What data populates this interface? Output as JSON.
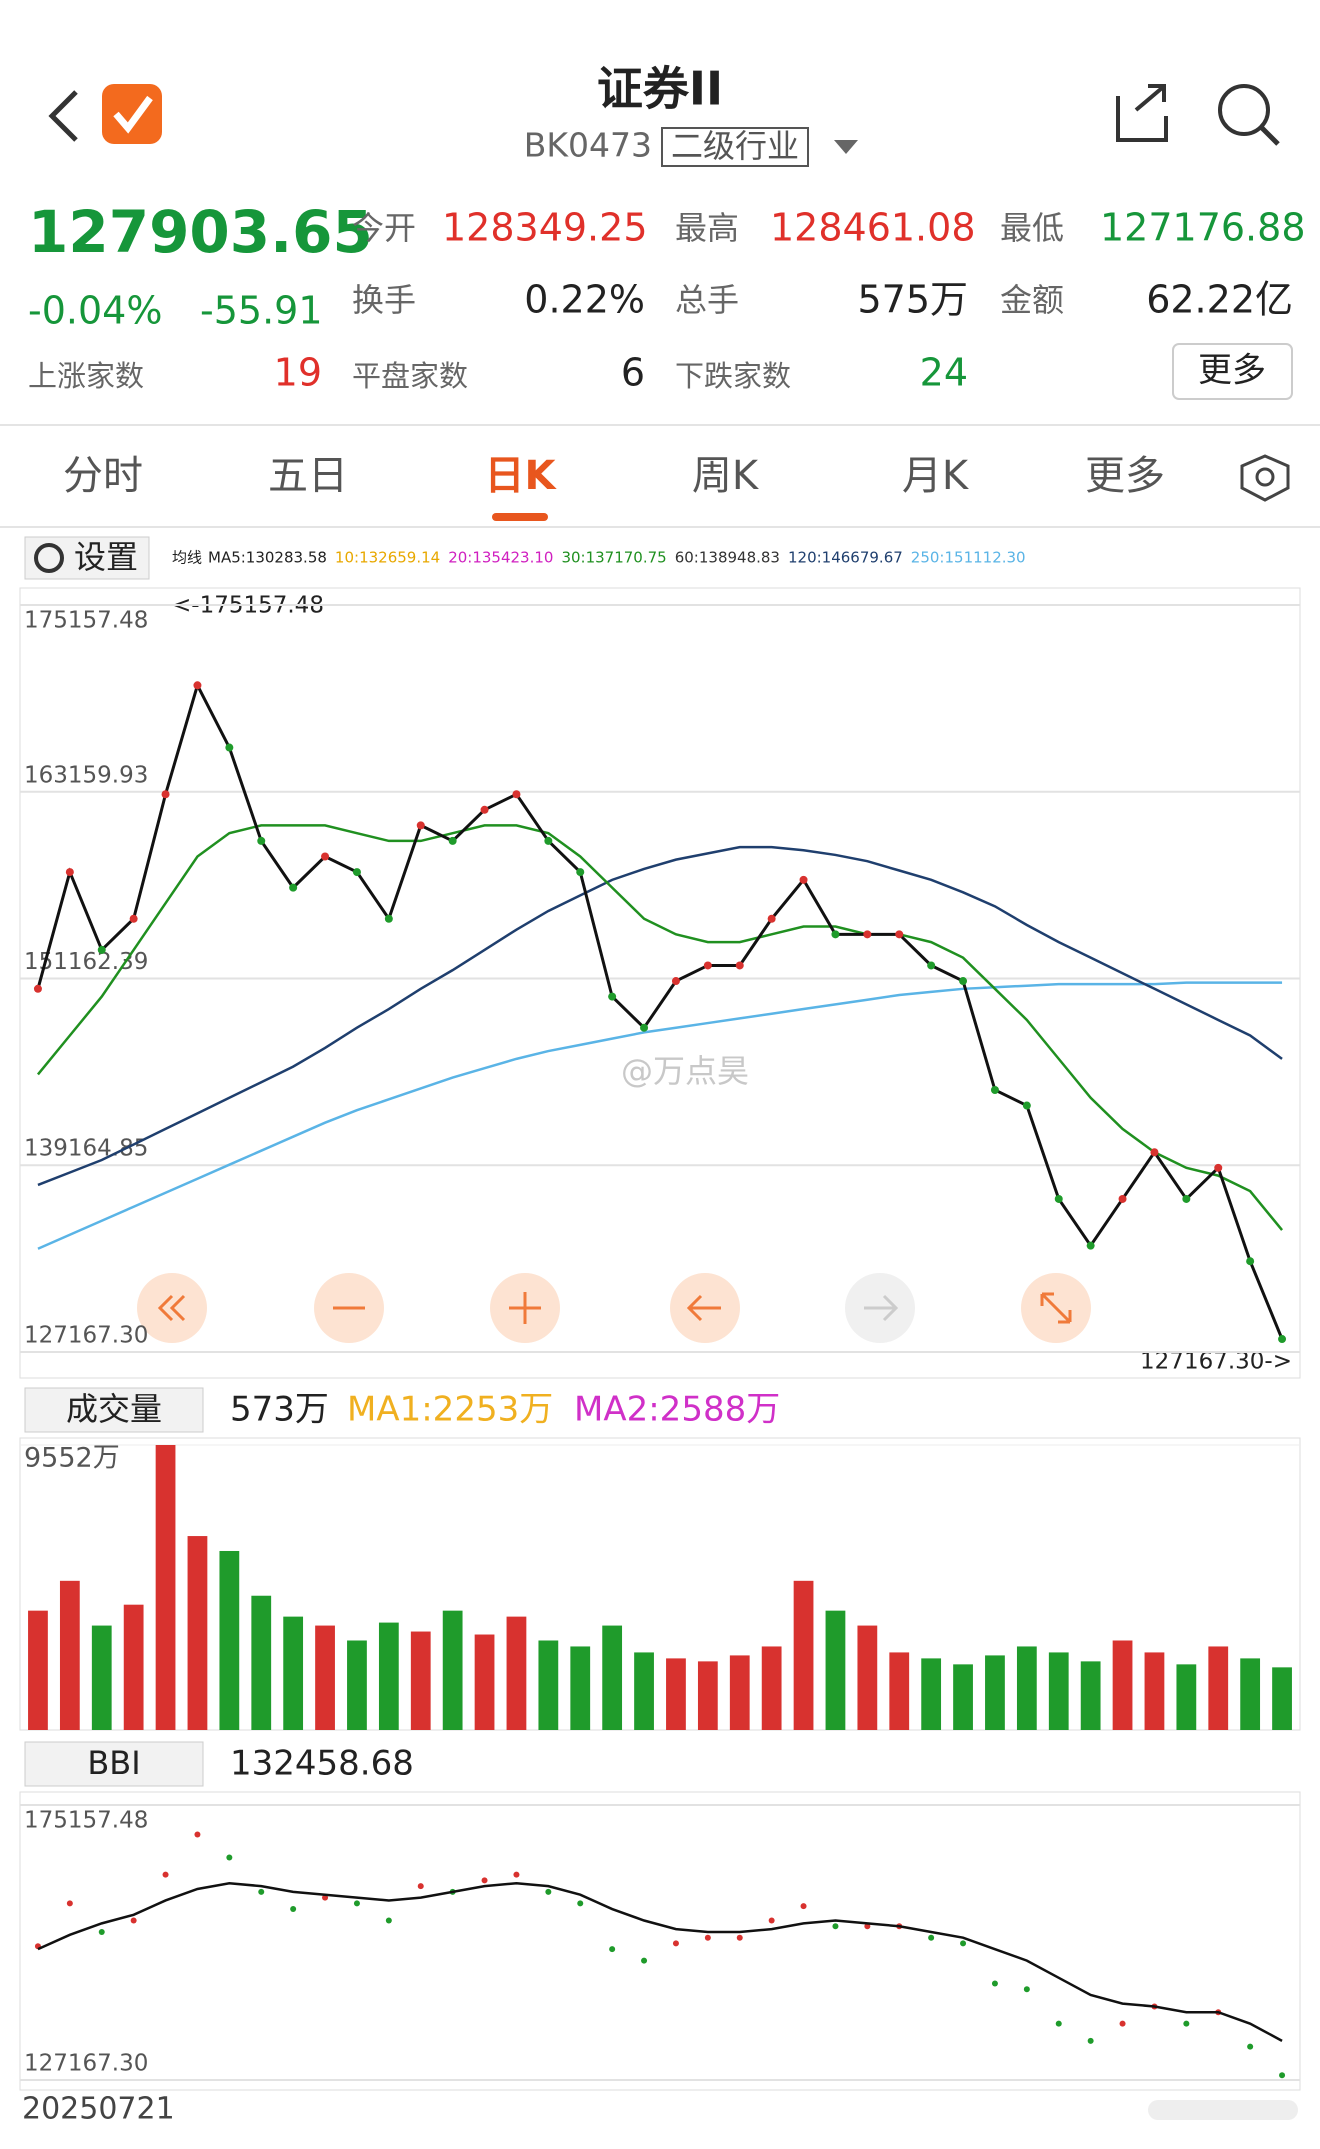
{
  "header": {
    "title": "证券II",
    "code": "BK0473",
    "tag": "二级行业"
  },
  "quote": {
    "price": "127903.65",
    "change_pct": "-0.04%",
    "change": "-55.91",
    "open_label": "今开",
    "open": "128349.25",
    "high_label": "最高",
    "high": "128461.08",
    "low_label": "最低",
    "low": "127176.88",
    "turnover_label": "换手",
    "turnover": "0.22%",
    "volume_label": "总手",
    "volume": "575万",
    "amount_label": "金额",
    "amount": "62.22亿",
    "rise_label": "上涨家数",
    "rise": "19",
    "flat_label": "平盘家数",
    "flat": "6",
    "fall_label": "下跌家数",
    "fall": "24",
    "more": "更多"
  },
  "tabs": [
    "分时",
    "五日",
    "日K",
    "周K",
    "月K",
    "更多"
  ],
  "settings": "设置",
  "chart_data": [
    {
      "type": "line",
      "legend_title": "均线",
      "legend": [
        {
          "text": "MA5:130283.58",
          "color": "#222222"
        },
        {
          "text": "10:132659.14",
          "color": "#e8a800"
        },
        {
          "text": "20:135423.10",
          "color": "#d020c0"
        },
        {
          "text": "30:137170.75",
          "color": "#209020"
        },
        {
          "text": "60:138948.83",
          "color": "#333333"
        },
        {
          "text": "120:146679.67",
          "color": "#1f3f6e"
        },
        {
          "text": "250:151112.30",
          "color": "#5ab4e6"
        }
      ],
      "ylim": [
        127167.3,
        175157.48
      ],
      "yticks": [
        {
          "value": 127167.3,
          "label": "127167.30"
        },
        139164.85,
        151162.39,
        163159.93,
        175157.48
      ],
      "annotations": [
        "<-175157.48",
        "127167.30->"
      ],
      "watermark": "@万点昊",
      "series": [
        {
          "color": "#5ab4e6",
          "values": [
            133800,
            134700,
            135600,
            136500,
            137400,
            138300,
            139200,
            140100,
            141000,
            141900,
            142700,
            143400,
            144100,
            144800,
            145400,
            146000,
            146500,
            146900,
            147300,
            147700,
            148000,
            148300,
            148600,
            148900,
            149200,
            149500,
            149800,
            150100,
            150300,
            150500,
            150600,
            150700,
            150800,
            150800,
            150800,
            150800,
            150900,
            150900,
            150900,
            150900
          ]
        },
        {
          "color": "#1f3f6e",
          "values": [
            137900,
            138700,
            139500,
            140500,
            141500,
            142500,
            143500,
            144500,
            145500,
            146700,
            148000,
            149200,
            150500,
            151700,
            153000,
            154300,
            155500,
            156500,
            157500,
            158200,
            158800,
            159200,
            159600,
            159600,
            159400,
            159100,
            158700,
            158100,
            157500,
            156700,
            155800,
            154600,
            153500,
            152500,
            151500,
            150500,
            149500,
            148500,
            147500,
            146000
          ]
        },
        {
          "color": "#209020",
          "values": [
            145000,
            147500,
            150000,
            153000,
            156000,
            159000,
            160500,
            161000,
            161000,
            161000,
            160500,
            160000,
            160000,
            160500,
            161000,
            161000,
            160500,
            159000,
            157000,
            155000,
            154000,
            153500,
            153500,
            154000,
            154500,
            154500,
            154000,
            154000,
            153500,
            152500,
            150500,
            148500,
            146000,
            143500,
            141500,
            140000,
            139000,
            138500,
            137500,
            135000
          ]
        },
        {
          "color": "#111111",
          "values": [
            150500,
            158000,
            153000,
            155000,
            163000,
            170000,
            166000,
            160000,
            157000,
            159000,
            158000,
            155000,
            161000,
            160000,
            162000,
            163000,
            160000,
            158000,
            150000,
            148000,
            151000,
            152000,
            152000,
            155000,
            157500,
            154000,
            154000,
            154000,
            152000,
            151000,
            144000,
            143000,
            137000,
            134000,
            137000,
            140000,
            137000,
            139000,
            133000,
            128000
          ]
        }
      ]
    },
    {
      "type": "bar",
      "label": "成交量",
      "current": "573万",
      "ma_labels": [
        {
          "text": "MA1:2253万",
          "color": "#f0b020"
        },
        {
          "text": "MA2:2588万",
          "color": "#d030c8"
        }
      ],
      "ylim": [
        0,
        9552
      ],
      "yticks": [
        {
          "value": 9552,
          "label": "9552万"
        }
      ],
      "up_color": "#d8322f",
      "down_color": "#1f9b2b",
      "values": [
        4000,
        5000,
        3500,
        4200,
        9552,
        6500,
        6000,
        4500,
        3800,
        3500,
        3000,
        3600,
        3300,
        4000,
        3200,
        3800,
        3000,
        2800,
        3500,
        2600,
        2400,
        2300,
        2500,
        2800,
        5000,
        4000,
        3500,
        2600,
        2400,
        2200,
        2500,
        2800,
        2600,
        2300,
        3000,
        2600,
        2200,
        2800,
        2400,
        2100
      ]
    },
    {
      "type": "line",
      "label": "BBI",
      "current": "132458.68",
      "ylim": [
        127167.3,
        175157.48
      ],
      "yticks": [
        {
          "value": 127167.3,
          "label": "127167.30"
        },
        175157.48
      ],
      "date": "20250721",
      "series": [
        {
          "color": "#111111",
          "values": [
            150000,
            152500,
            154500,
            156000,
            158500,
            160500,
            161500,
            161000,
            160000,
            159500,
            159000,
            158500,
            159000,
            160000,
            161000,
            161500,
            161000,
            159500,
            157000,
            155000,
            153500,
            153000,
            153000,
            153500,
            154500,
            155000,
            154500,
            154000,
            153000,
            152000,
            150000,
            148000,
            145000,
            142000,
            140500,
            140000,
            139000,
            139000,
            137000,
            134000
          ]
        }
      ]
    }
  ]
}
